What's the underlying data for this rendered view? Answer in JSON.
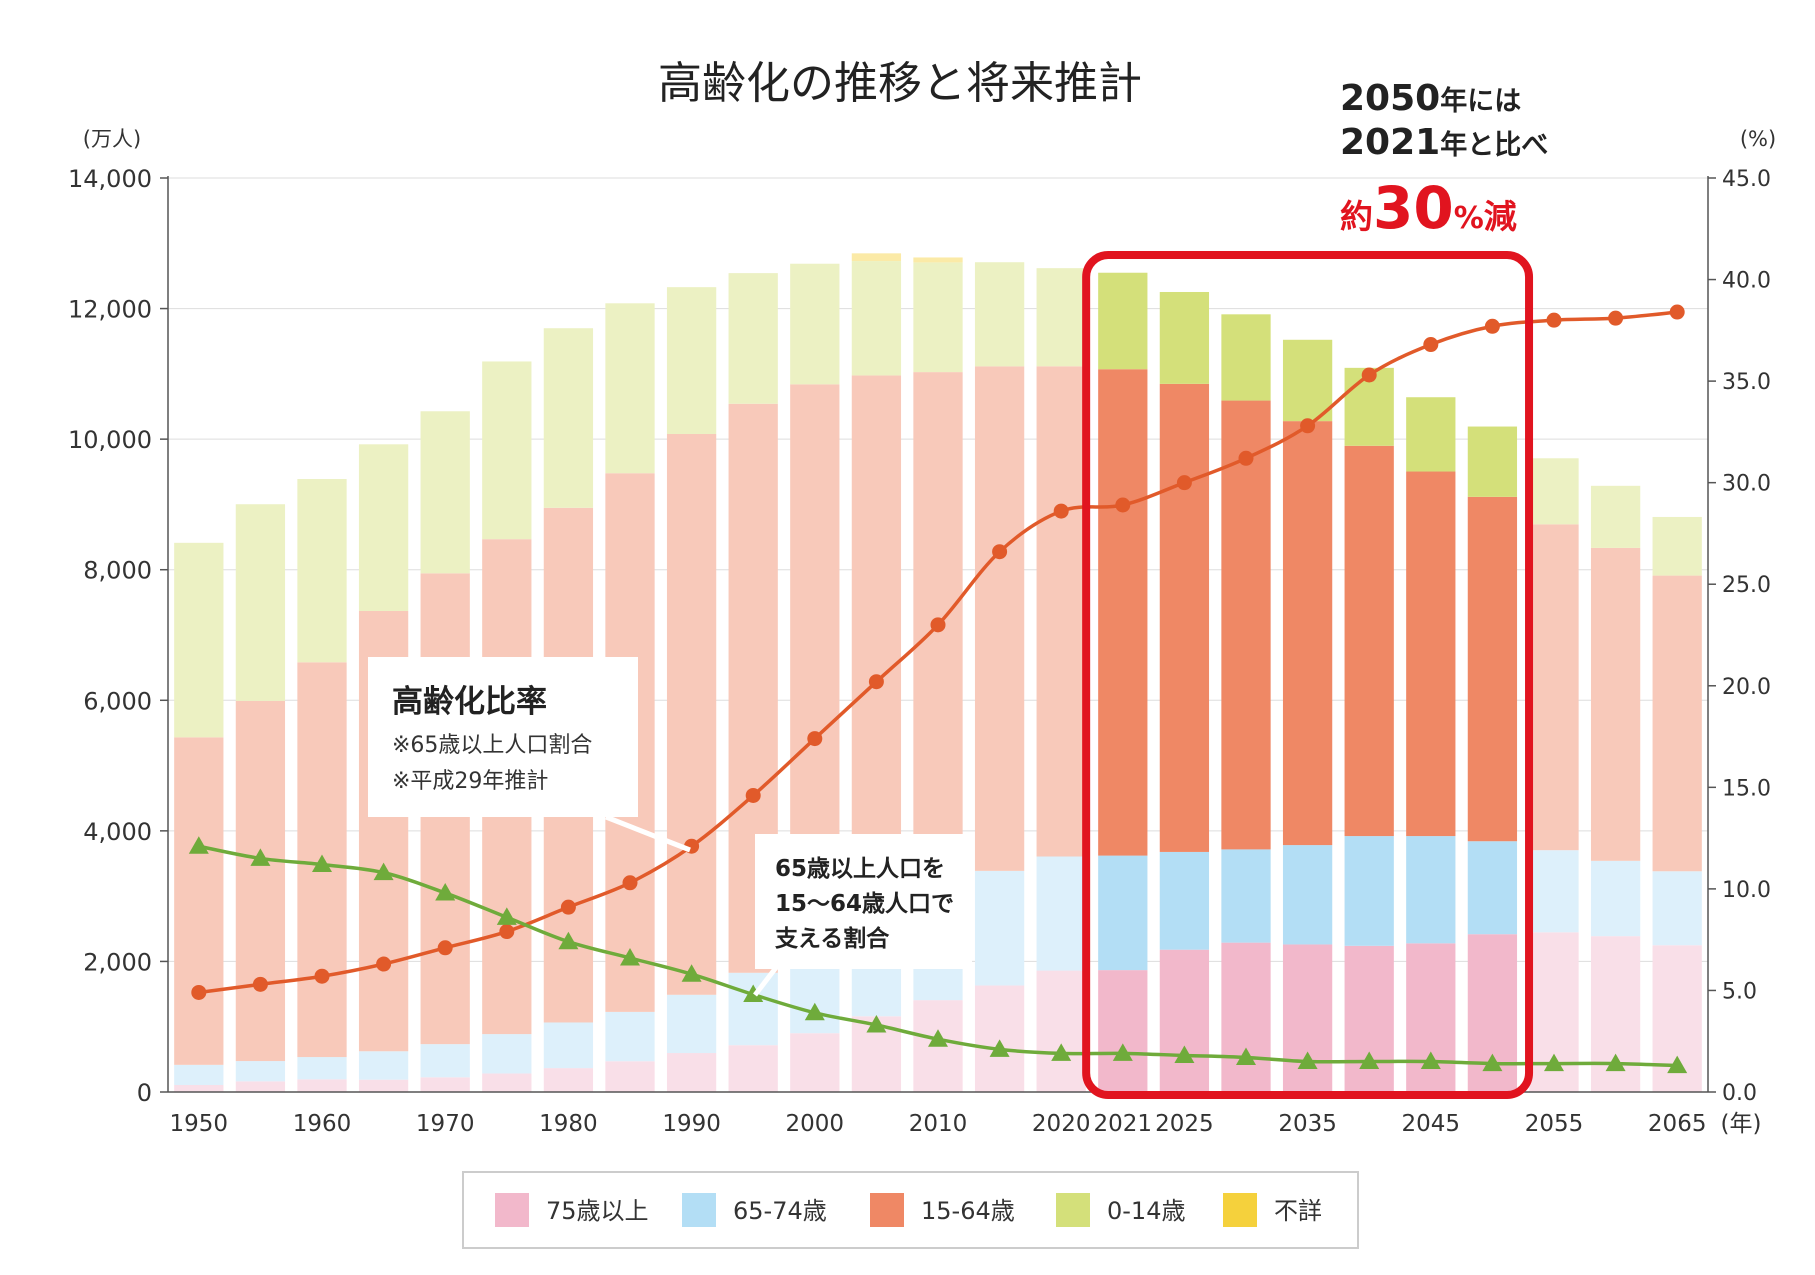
{
  "chart_data": {
    "type": "bar",
    "title": "高齢化の推移と将来推計",
    "left_axis_unit": "(万人)",
    "right_axis_unit": "(%)",
    "x_axis_unit": "(年)",
    "left_ylim": [
      0,
      14000
    ],
    "left_ticks": [
      "0",
      "2,000",
      "4,000",
      "6,000",
      "8,000",
      "10,000",
      "12,000",
      "14,000"
    ],
    "right_ylim": [
      0,
      45
    ],
    "right_ticks": [
      "0.0",
      "5.0",
      "10.0",
      "15.0",
      "20.0",
      "25.0",
      "30.0",
      "35.0",
      "40.0",
      "45.0"
    ],
    "categories": [
      "1950",
      "1955",
      "1960",
      "1965",
      "1970",
      "1975",
      "1980",
      "1985",
      "1990",
      "1995",
      "2000",
      "2005",
      "2010",
      "2015",
      "2020",
      "2021",
      "2025",
      "2030",
      "2035",
      "2040",
      "2045",
      "2050",
      "2055",
      "2060",
      "2065"
    ],
    "x_tick_labels": [
      {
        "index": 0,
        "label": "1950"
      },
      {
        "index": 2,
        "label": "1960"
      },
      {
        "index": 4,
        "label": "1970"
      },
      {
        "index": 6,
        "label": "1980"
      },
      {
        "index": 8,
        "label": "1990"
      },
      {
        "index": 10,
        "label": "2000"
      },
      {
        "index": 12,
        "label": "2010"
      },
      {
        "index": 14,
        "label": "2020"
      },
      {
        "index": 15,
        "label": "2021"
      },
      {
        "index": 16,
        "label": "2025"
      },
      {
        "index": 18,
        "label": "2035"
      },
      {
        "index": 20,
        "label": "2045"
      },
      {
        "index": 22,
        "label": "2055"
      },
      {
        "index": 24,
        "label": "2065"
      }
    ],
    "highlight_range": [
      15,
      21
    ],
    "series": [
      {
        "name": "75歳以上",
        "color": "#f2b8cb",
        "values": [
          107,
          163,
          194,
          189,
          225,
          284,
          366,
          471,
          597,
          717,
          901,
          1160,
          1407,
          1632,
          1860,
          1867,
          2180,
          2288,
          2260,
          2239,
          2277,
          2417,
          2446,
          2387,
          2248
        ]
      },
      {
        "name": "65-74歳",
        "color": "#b3def5",
        "values": [
          309,
          311,
          341,
          435,
          508,
          603,
          699,
          756,
          892,
          1109,
          1301,
          1407,
          1517,
          1755,
          1747,
          1754,
          1497,
          1428,
          1522,
          1681,
          1643,
          1424,
          1258,
          1154,
          1133
        ]
      },
      {
        "name": "15-64歳",
        "color": "#ef8865",
        "values": [
          5017,
          5517,
          6047,
          6744,
          7212,
          7581,
          7883,
          8251,
          8590,
          8716,
          8638,
          8409,
          8103,
          7728,
          7509,
          7450,
          7170,
          6875,
          6494,
          5978,
          5584,
          5275,
          4991,
          4793,
          4529
        ]
      },
      {
        "name": "0-14歳",
        "color": "#d4e07a",
        "values": [
          2979,
          3012,
          2807,
          2553,
          2482,
          2722,
          2751,
          2603,
          2249,
          2001,
          1847,
          1752,
          1680,
          1595,
          1503,
          1478,
          1407,
          1321,
          1246,
          1194,
          1138,
          1077,
          1012,
          951,
          898
        ]
      },
      {
        "name": "不詳",
        "color": "#f5d13c",
        "values": [
          0,
          0,
          0,
          0,
          0,
          0,
          0,
          0,
          0,
          0,
          0,
          118,
          76,
          0,
          0,
          0,
          0,
          0,
          0,
          0,
          0,
          0,
          0,
          0,
          0
        ]
      }
    ],
    "lines": [
      {
        "name": "高齢化比率",
        "color": "#e15a2a",
        "marker": "circle",
        "values": [
          4.9,
          5.3,
          5.7,
          6.3,
          7.1,
          7.9,
          9.1,
          10.3,
          12.1,
          14.6,
          17.4,
          20.2,
          23.0,
          26.6,
          28.6,
          28.9,
          30.0,
          31.2,
          32.8,
          35.3,
          36.8,
          37.7,
          38.0,
          38.1,
          38.4
        ]
      },
      {
        "name": "65歳以上人口を15〜64歳人口で支える割合",
        "color": "#6fab3b",
        "marker": "triangle",
        "values": [
          12.1,
          11.5,
          11.2,
          10.8,
          9.8,
          8.6,
          7.4,
          6.6,
          5.8,
          4.8,
          3.9,
          3.3,
          2.6,
          2.1,
          1.9,
          1.9,
          1.8,
          1.7,
          1.5,
          1.5,
          1.5,
          1.4,
          1.4,
          1.4,
          1.3
        ]
      }
    ],
    "annotation_ratio": {
      "title": "高齢化比率",
      "note1": "※65歳以上人口割合",
      "note2": "※平成29年推計"
    },
    "annotation_support": {
      "line1": "65歳以上人口を",
      "line2": "15〜64歳人口で",
      "line3": "支える割合"
    },
    "callout": {
      "line1_num": "2050",
      "line1_text": "年には",
      "line2_num": "2021",
      "line2_text": "年と比べ",
      "line3_pre": "約",
      "line3_num": "30",
      "line3_pct": "%",
      "line3_post": "減"
    },
    "colors": {
      "highlight_box": "#e1141f",
      "axis": "#555555",
      "grid": "#dddddd"
    }
  }
}
